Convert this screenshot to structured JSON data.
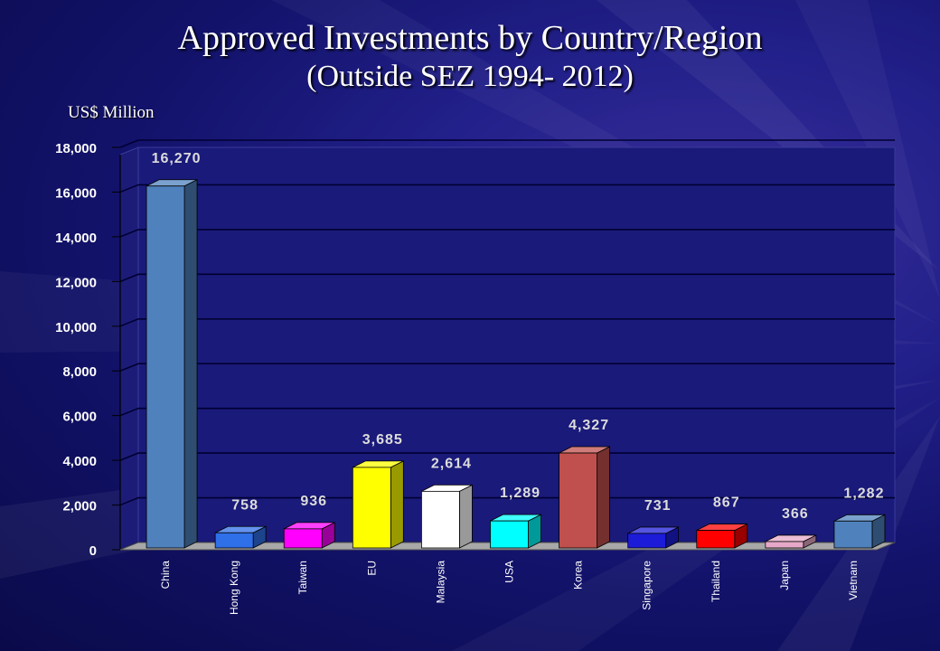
{
  "title": "Approved Investments by Country/Region",
  "subtitle": "(Outside SEZ 1994- 2012)",
  "unit_label": "US$ Million",
  "chart_data": {
    "type": "bar",
    "title": "Approved Investments by Country/Region",
    "subtitle": "(Outside SEZ 1994- 2012)",
    "ylabel": "US$ Million",
    "xlabel": "",
    "ylim": [
      0,
      18000
    ],
    "yticks": [
      0,
      2000,
      4000,
      6000,
      8000,
      10000,
      12000,
      14000,
      16000,
      18000
    ],
    "ytick_labels": [
      "0",
      "2,000",
      "4,000",
      "6,000",
      "8,000",
      "10,000",
      "12,000",
      "14,000",
      "16,000",
      "18,000"
    ],
    "grid": true,
    "categories": [
      "China",
      "Hong Kong",
      "Taiwan",
      "EU",
      "Malaysia",
      "USA",
      "Korea",
      "Singapore",
      "Thailand",
      "Japan",
      "Vietnam"
    ],
    "values": [
      16270,
      758,
      936,
      3685,
      2614,
      1289,
      4327,
      731,
      867,
      366,
      1282
    ],
    "value_labels": [
      "16,270",
      "758",
      "936",
      "3,685",
      "2,614",
      "1,289",
      "4,327",
      "731",
      "867",
      "366",
      "1,282"
    ],
    "colors": [
      "#4f81bd",
      "#2f6fe8",
      "#ff00ff",
      "#ffff00",
      "#ffffff",
      "#00ffff",
      "#c0504d",
      "#1c1cd8",
      "#ff0000",
      "#e6a8c8",
      "#4f81bd"
    ]
  }
}
